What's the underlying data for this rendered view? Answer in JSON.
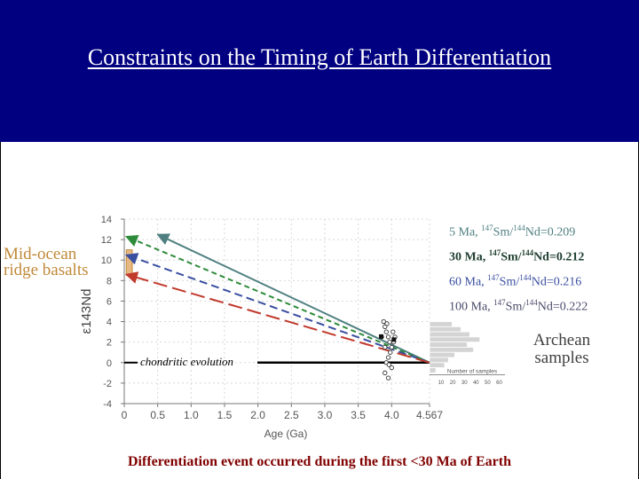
{
  "slide": {
    "title": "Constraints on the Timing of Earth Differentiation",
    "footer": "Differentiation event occurred during the first <30 Ma of Earth",
    "morb_label": [
      "Mid-ocean",
      "ridge basalts"
    ],
    "archean_label": [
      "Archean",
      "samples"
    ],
    "chondritic_label": "chondritic evolution"
  },
  "colors": {
    "header_bg": "#000080",
    "series_5": "#4f7f80",
    "series_30": "#2e8b3a",
    "series_60": "#3a4fa0",
    "series_100": "#c0392b",
    "morb": "#c08a3a",
    "footer": "#800000"
  },
  "legend": [
    {
      "t": "5 Ma, ",
      "s1": "147",
      "m1": "Sm/",
      "s2": "144",
      "m2": "Nd=0.209",
      "color": "#4f7f80",
      "bold": false
    },
    {
      "t": "30 Ma, ",
      "s1": "147",
      "m1": "Sm/",
      "s2": "144",
      "m2": "Nd=0.212",
      "color": "#1f3f30",
      "bold": true
    },
    {
      "t": "60 Ma, ",
      "s1": "147",
      "m1": "Sm/",
      "s2": "144",
      "m2": "Nd=0.216",
      "color": "#3a4fa0",
      "bold": false
    },
    {
      "t": "100 Ma, ",
      "s1": "147",
      "m1": "Sm/",
      "s2": "144",
      "m2": "Nd=0.222",
      "color": "#4a4a6a",
      "bold": false
    }
  ],
  "chart_data": {
    "type": "line",
    "xlabel": "Age (Ga)",
    "ylabel": "ε143Nd",
    "xlim": [
      0,
      4.567
    ],
    "ylim": [
      -4,
      14
    ],
    "x_ticks": [
      "0",
      "0.5",
      "1.0",
      "1.5",
      "2.0",
      "2.5",
      "3.0",
      "3.5",
      "4.0",
      "4.567"
    ],
    "x_tick_values": [
      0,
      0.5,
      1.0,
      1.5,
      2.0,
      2.5,
      3.0,
      3.5,
      4.0,
      4.567
    ],
    "y_ticks": [
      "14",
      "12",
      "10",
      "8",
      "6",
      "4",
      "2",
      "0",
      "-2",
      "-4"
    ],
    "y_tick_values": [
      14,
      12,
      10,
      8,
      6,
      4,
      2,
      0,
      -2,
      -4
    ],
    "series": [
      {
        "name": "5 Ma, 147Sm/144Nd=0.209",
        "x": [
          4.567,
          0.5
        ],
        "y": [
          0,
          12.5
        ],
        "dash": "none"
      },
      {
        "name": "30 Ma, 147Sm/144Nd=0.212",
        "x": [
          4.567,
          0.03
        ],
        "y": [
          0,
          12.3
        ],
        "dash": "6,4"
      },
      {
        "name": "60 Ma, 147Sm/144Nd=0.216",
        "x": [
          4.567,
          0.03
        ],
        "y": [
          0,
          10.5
        ],
        "dash": "9,5"
      },
      {
        "name": "100 Ma, 147Sm/144Nd=0.222",
        "x": [
          4.567,
          0.03
        ],
        "y": [
          0,
          8.6
        ],
        "dash": "16,6"
      }
    ],
    "chondritic_line": {
      "x": [
        0,
        4.567
      ],
      "y": [
        0,
        0
      ]
    },
    "morb_range": {
      "x": [
        0.03,
        0.12
      ],
      "y": [
        8.5,
        11
      ]
    },
    "archean_points": [
      {
        "x": 3.88,
        "y": 4.0
      },
      {
        "x": 3.9,
        "y": 3.5
      },
      {
        "x": 3.92,
        "y": 3.0
      },
      {
        "x": 3.95,
        "y": 2.5
      },
      {
        "x": 3.97,
        "y": 2.0
      },
      {
        "x": 3.9,
        "y": 1.5
      },
      {
        "x": 3.98,
        "y": 1.0
      },
      {
        "x": 3.95,
        "y": 0.5
      },
      {
        "x": 3.92,
        "y": 0.0
      },
      {
        "x": 4.0,
        "y": -0.5
      },
      {
        "x": 3.9,
        "y": -1.0
      },
      {
        "x": 3.95,
        "y": -1.5
      },
      {
        "x": 4.02,
        "y": 3.0
      },
      {
        "x": 4.03,
        "y": 2.0
      },
      {
        "x": 4.05,
        "y": 2.5
      },
      {
        "x": 3.85,
        "y": 2.5
      },
      {
        "x": 3.93,
        "y": 3.8
      },
      {
        "x": 4.0,
        "y": 1.5
      },
      {
        "x": 3.96,
        "y": -0.2
      }
    ],
    "histogram": {
      "xlabel": "Number of samples",
      "x_ticks": [
        "10",
        "20",
        "30",
        "40",
        "50",
        "60"
      ],
      "bins_y": [
        [
          3.5,
          4
        ],
        [
          3,
          3.5
        ],
        [
          2.5,
          3
        ],
        [
          2,
          2.5
        ],
        [
          1.5,
          2
        ],
        [
          1,
          1.5
        ],
        [
          0.5,
          1
        ],
        [
          0,
          0.5
        ],
        [
          -0.5,
          0
        ],
        [
          -1,
          -0.5
        ]
      ],
      "counts": [
        18,
        25,
        32,
        40,
        30,
        35,
        20,
        15,
        12,
        5
      ]
    }
  }
}
